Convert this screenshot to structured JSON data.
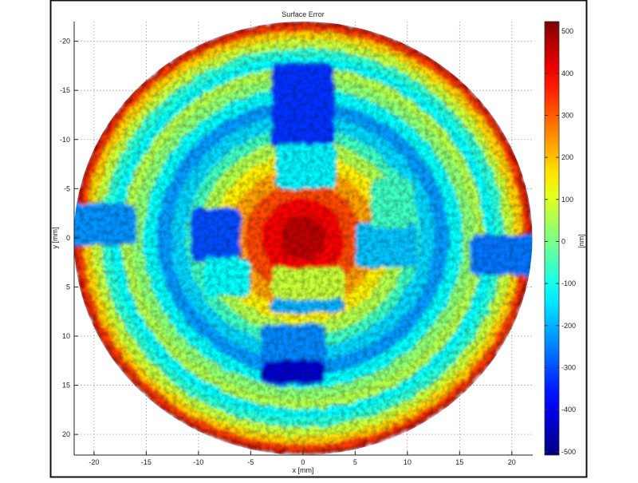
{
  "chart_data": {
    "type": "heatmap",
    "title": "Surface Error",
    "xlabel": "x [mm]",
    "ylabel": "y [mm]",
    "colorbar_label": "[nm]",
    "colormap": "jet",
    "grid": true,
    "y_reversed": true,
    "xlim": [
      -21.9,
      22.0
    ],
    "ylim": [
      -22.0,
      22.1
    ],
    "xticks": [
      -20,
      -15,
      -10,
      -5,
      0,
      5,
      10,
      15,
      20
    ],
    "yticks": [
      -20,
      -15,
      -10,
      -5,
      0,
      5,
      10,
      15,
      20
    ],
    "clim": [
      -508,
      523
    ],
    "colorbar_ticks": [
      500,
      400,
      300,
      200,
      100,
      0,
      -100,
      -200,
      -300,
      -400,
      -500
    ],
    "aperture_radius": 22,
    "radial_profile": [
      {
        "r": 22.0,
        "value": 470
      },
      {
        "r": 21.6,
        "value": 330
      },
      {
        "r": 21.0,
        "value": 180
      },
      {
        "r": 20.2,
        "value": 80
      },
      {
        "r": 19.3,
        "value": -80
      },
      {
        "r": 18.4,
        "value": -120
      },
      {
        "r": 17.4,
        "value": 60
      },
      {
        "r": 16.4,
        "value": 20
      },
      {
        "r": 15.3,
        "value": -120
      },
      {
        "r": 14.0,
        "value": -220
      },
      {
        "r": 12.6,
        "value": -160
      },
      {
        "r": 11.2,
        "value": -60
      },
      {
        "r": 10.0,
        "value": 60
      },
      {
        "r": 8.6,
        "value": 150
      },
      {
        "r": 7.2,
        "value": 230
      },
      {
        "r": 5.6,
        "value": 320
      },
      {
        "r": 4.0,
        "value": 400
      },
      {
        "r": 2.2,
        "value": 460
      }
    ],
    "regions": [
      {
        "x0": -3.0,
        "x1": 3.0,
        "y0": -17.8,
        "y1": -9.0,
        "value": -330
      },
      {
        "x0": -2.6,
        "x1": 3.2,
        "y0": -9.5,
        "y1": -5.0,
        "value": -130
      },
      {
        "x0": -4.0,
        "x1": 2.2,
        "y0": 8.8,
        "y1": 15.0,
        "value": -240
      },
      {
        "x0": -4.0,
        "x1": 2.2,
        "y0": 12.5,
        "y1": 14.8,
        "value": -430
      },
      {
        "x0": -22.5,
        "x1": -16.0,
        "y0": -3.5,
        "y1": 0.8,
        "value": -230
      },
      {
        "x0": 16.0,
        "x1": 22.5,
        "y0": -0.3,
        "y1": 3.8,
        "value": -260
      },
      {
        "x0": -10.8,
        "x1": -6.0,
        "y0": -3.0,
        "y1": 2.5,
        "value": -300
      },
      {
        "x0": -9.5,
        "x1": -5.0,
        "y0": 2.0,
        "y1": 6.0,
        "value": -120
      },
      {
        "x0": 5.0,
        "x1": 11.0,
        "y0": -1.5,
        "y1": 3.0,
        "value": -180
      },
      {
        "x0": 6.5,
        "x1": 10.5,
        "y0": -6.0,
        "y1": -1.0,
        "value": -60
      },
      {
        "x0": -3.0,
        "x1": 4.0,
        "y0": 3.0,
        "y1": 6.5,
        "value": 80
      },
      {
        "x0": -3.2,
        "x1": 4.0,
        "y0": 6.3,
        "y1": 7.6,
        "value": -200
      }
    ]
  }
}
